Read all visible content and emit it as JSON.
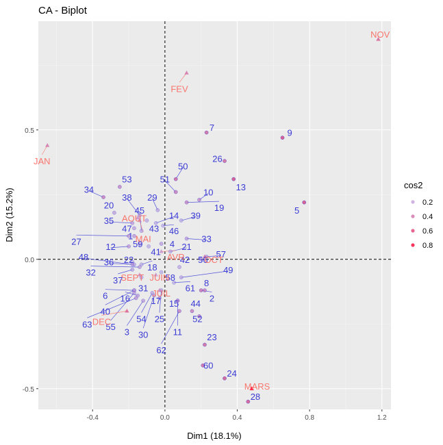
{
  "chart_data": {
    "type": "scatter",
    "title": "CA - Biplot",
    "xlabel": "Dim1 (18.1%)",
    "ylabel": "Dim2 (15.2%)",
    "xlim": [
      -0.7,
      1.25
    ],
    "ylim": [
      -0.58,
      0.92
    ],
    "x_ticks": [
      -0.4,
      0.0,
      0.4,
      0.8,
      1.2
    ],
    "x_tick_labels": [
      "-0.4",
      "0.0",
      "0.4",
      "0.8",
      "1.2"
    ],
    "y_ticks": [
      -0.5,
      0.0,
      0.5
    ],
    "y_tick_labels": [
      "-0.5",
      "0.0",
      "0.5"
    ],
    "grid": true,
    "reference_lines": {
      "x": 0,
      "y": 0,
      "style": "dashed"
    },
    "legend": {
      "title": "cos2",
      "position": "right",
      "entries": [
        "0.2",
        "0.4",
        "0.6",
        "0.8"
      ],
      "values": [
        0.2,
        0.4,
        0.6,
        0.8
      ]
    },
    "colors": {
      "rows": "#3b3bd6",
      "columns": "#f8766d"
    },
    "series": [
      {
        "name": "rows",
        "marker": "circle",
        "points": [
          {
            "label": "1",
            "x": -0.17,
            "y": 0.09,
            "lx": -0.19,
            "ly": 0.09,
            "cos2": 0.35
          },
          {
            "label": "2",
            "x": 0.2,
            "y": -0.12,
            "lx": 0.26,
            "ly": -0.15,
            "cos2": 0.6
          },
          {
            "label": "3",
            "x": -0.12,
            "y": -0.16,
            "lx": -0.21,
            "ly": -0.28,
            "cos2": 0.3
          },
          {
            "label": "4",
            "x": -0.02,
            "y": 0.06,
            "lx": 0.04,
            "ly": 0.06,
            "cos2": 0.3
          },
          {
            "label": "5",
            "x": 0.77,
            "y": 0.22,
            "lx": 0.73,
            "ly": 0.19,
            "cos2": 0.85
          },
          {
            "label": "6",
            "x": -0.17,
            "y": -0.12,
            "lx": -0.33,
            "ly": -0.14,
            "cos2": 0.3
          },
          {
            "label": "7",
            "x": 0.23,
            "y": 0.49,
            "lx": 0.26,
            "ly": 0.51,
            "cos2": 0.7
          },
          {
            "label": "8",
            "x": 0.22,
            "y": -0.12,
            "lx": 0.23,
            "ly": -0.09,
            "cos2": 0.55
          },
          {
            "label": "9",
            "x": 0.65,
            "y": 0.47,
            "lx": 0.69,
            "ly": 0.49,
            "cos2": 0.85
          },
          {
            "label": "10",
            "x": 0.19,
            "y": 0.23,
            "lx": 0.24,
            "ly": 0.26,
            "cos2": 0.45
          },
          {
            "label": "11",
            "x": 0.07,
            "y": -0.16,
            "lx": 0.07,
            "ly": -0.28,
            "cos2": 0.55
          },
          {
            "label": "12",
            "x": -0.2,
            "y": 0.05,
            "lx": -0.3,
            "ly": 0.05,
            "cos2": 0.35
          },
          {
            "label": "13",
            "x": 0.38,
            "y": 0.31,
            "lx": 0.42,
            "ly": 0.28,
            "cos2": 0.85
          },
          {
            "label": "14",
            "x": -0.05,
            "y": 0.14,
            "lx": 0.05,
            "ly": 0.17,
            "cos2": 0.2
          },
          {
            "label": "15",
            "x": 0.07,
            "y": -0.16,
            "lx": 0.05,
            "ly": -0.17,
            "cos2": 0.3
          },
          {
            "label": "16",
            "x": -0.15,
            "y": -0.14,
            "lx": -0.22,
            "ly": -0.15,
            "cos2": 0.3
          },
          {
            "label": "17",
            "x": -0.03,
            "y": -0.15,
            "lx": -0.05,
            "ly": -0.16,
            "cos2": 0.3
          },
          {
            "label": "18",
            "x": -0.13,
            "y": -0.02,
            "lx": -0.07,
            "ly": -0.03,
            "cos2": 0.2
          },
          {
            "label": "19",
            "x": 0.12,
            "y": 0.22,
            "lx": 0.3,
            "ly": 0.2,
            "cos2": 0.5
          },
          {
            "label": "20",
            "x": -0.28,
            "y": 0.18,
            "lx": -0.31,
            "ly": 0.21,
            "cos2": 0.3
          },
          {
            "label": "21",
            "x": 0.03,
            "y": 0.03,
            "lx": 0.12,
            "ly": 0.05,
            "cos2": 0.2
          },
          {
            "label": "22",
            "x": -0.18,
            "y": -0.01,
            "lx": -0.2,
            "ly": 0,
            "cos2": 0.2
          },
          {
            "label": "23",
            "x": 0.22,
            "y": -0.33,
            "lx": 0.26,
            "ly": -0.3,
            "cos2": 0.7
          },
          {
            "label": "24",
            "x": 0.33,
            "y": -0.46,
            "lx": 0.37,
            "ly": -0.44,
            "cos2": 0.8
          },
          {
            "label": "25",
            "x": -0.02,
            "y": -0.12,
            "lx": -0.03,
            "ly": -0.23,
            "cos2": 0.3
          },
          {
            "label": "26",
            "x": 0.33,
            "y": 0.38,
            "lx": 0.29,
            "ly": 0.39,
            "cos2": 0.7
          },
          {
            "label": "27",
            "x": -0.2,
            "y": 0.09,
            "lx": -0.49,
            "ly": 0.07,
            "cos2": 0.35
          },
          {
            "label": "28",
            "x": 0.46,
            "y": -0.55,
            "lx": 0.5,
            "ly": -0.53,
            "cos2": 0.8
          },
          {
            "label": "29",
            "x": -0.04,
            "y": 0.19,
            "lx": -0.07,
            "ly": 0.24,
            "cos2": 0.25
          },
          {
            "label": "30",
            "x": -0.06,
            "y": -0.14,
            "lx": -0.12,
            "ly": -0.29,
            "cos2": 0.25
          },
          {
            "label": "31",
            "x": -0.13,
            "y": -0.07,
            "lx": -0.12,
            "ly": -0.11,
            "cos2": 0.25
          },
          {
            "label": "32",
            "x": -0.14,
            "y": -0.03,
            "lx": -0.41,
            "ly": -0.05,
            "cos2": 0.3
          },
          {
            "label": "33",
            "x": 0.12,
            "y": 0.08,
            "lx": 0.23,
            "ly": 0.08,
            "cos2": 0.3
          },
          {
            "label": "34",
            "x": -0.34,
            "y": 0.24,
            "lx": -0.42,
            "ly": 0.27,
            "cos2": 0.55
          },
          {
            "label": "35",
            "x": -0.18,
            "y": 0.14,
            "lx": -0.31,
            "ly": 0.15,
            "cos2": 0.3
          },
          {
            "label": "36",
            "x": -0.17,
            "y": -0.02,
            "lx": -0.31,
            "ly": -0.01,
            "cos2": 0.25
          },
          {
            "label": "37",
            "x": -0.18,
            "y": -0.04,
            "lx": -0.26,
            "ly": -0.08,
            "cos2": 0.25
          },
          {
            "label": "38",
            "x": -0.14,
            "y": 0.17,
            "lx": -0.21,
            "ly": 0.24,
            "cos2": 0.3
          },
          {
            "label": "39",
            "x": 0.09,
            "y": 0.15,
            "lx": 0.17,
            "ly": 0.17,
            "cos2": 0.2
          },
          {
            "label": "40",
            "x": -0.17,
            "y": -0.12,
            "lx": -0.33,
            "ly": -0.2,
            "cos2": 0.3
          },
          {
            "label": "41",
            "x": -0.09,
            "y": 0.05,
            "lx": -0.05,
            "ly": 0.03,
            "cos2": 0.2
          },
          {
            "label": "42",
            "x": 0.08,
            "y": -0.03,
            "lx": 0.11,
            "ly": 0,
            "cos2": 0.25
          },
          {
            "label": "43",
            "x": -0.1,
            "y": 0.15,
            "lx": -0.06,
            "ly": 0.12,
            "cos2": 0.25
          },
          {
            "label": "44",
            "x": 0.15,
            "y": -0.2,
            "lx": 0.17,
            "ly": -0.17,
            "cos2": 0.55
          },
          {
            "label": "45",
            "x": -0.13,
            "y": 0.11,
            "lx": -0.14,
            "ly": 0.19,
            "cos2": 0.25
          },
          {
            "label": "46",
            "x": -0.01,
            "y": 0.13,
            "lx": 0.05,
            "ly": 0.11,
            "cos2": 0.2
          },
          {
            "label": "47",
            "x": -0.17,
            "y": 0.12,
            "lx": -0.21,
            "ly": 0.12,
            "cos2": 0.3
          },
          {
            "label": "48",
            "x": -0.18,
            "y": -0.02,
            "lx": -0.45,
            "ly": 0.01,
            "cos2": 0.3
          },
          {
            "label": "49",
            "x": 0.09,
            "y": -0.07,
            "lx": 0.35,
            "ly": -0.04,
            "cos2": 0.25
          },
          {
            "label": "50",
            "x": 0.06,
            "y": 0.31,
            "lx": 0.1,
            "ly": 0.36,
            "cos2": 0.7
          },
          {
            "label": "51",
            "x": 0.06,
            "y": 0.26,
            "lx": 0,
            "ly": 0.31,
            "cos2": 0.55
          },
          {
            "label": "52",
            "x": 0.19,
            "y": -0.22,
            "lx": 0.18,
            "ly": -0.23,
            "cos2": 0.55
          },
          {
            "label": "53",
            "x": -0.25,
            "y": 0.28,
            "lx": -0.21,
            "ly": 0.31,
            "cos2": 0.5
          },
          {
            "label": "54",
            "x": -0.07,
            "y": -0.13,
            "lx": -0.13,
            "ly": -0.23,
            "cos2": 0.25
          },
          {
            "label": "55",
            "x": -0.17,
            "y": -0.13,
            "lx": -0.3,
            "ly": -0.26,
            "cos2": 0.3
          },
          {
            "label": "56",
            "x": 0.2,
            "y": 0.0,
            "lx": 0.21,
            "ly": 0,
            "cos2": 0.3
          },
          {
            "label": "57",
            "x": 0.23,
            "y": 0.01,
            "lx": 0.31,
            "ly": 0.02,
            "cos2": 0.3
          },
          {
            "label": "58",
            "x": -0.02,
            "y": -0.05,
            "lx": 0.03,
            "ly": -0.07,
            "cos2": 0.2
          },
          {
            "label": "59",
            "x": -0.14,
            "y": 0.06,
            "lx": -0.15,
            "ly": 0.06,
            "cos2": 0.25
          },
          {
            "label": "60",
            "x": 0.21,
            "y": -0.41,
            "lx": 0.24,
            "ly": -0.41,
            "cos2": 0.7
          },
          {
            "label": "61",
            "x": 0.05,
            "y": -0.09,
            "lx": 0.14,
            "ly": -0.11,
            "cos2": 0.2
          },
          {
            "label": "62",
            "x": 0.08,
            "y": -0.2,
            "lx": -0.02,
            "ly": -0.35,
            "cos2": 0.5
          },
          {
            "label": "63",
            "x": -0.16,
            "y": -0.15,
            "lx": -0.43,
            "ly": -0.25,
            "cos2": 0.35
          }
        ]
      },
      {
        "name": "columns",
        "marker": "triangle",
        "points": [
          {
            "label": "NOV",
            "x": 1.18,
            "y": 0.85,
            "lx": 1.19,
            "ly": 0.87,
            "cos2": 0.5
          },
          {
            "label": "FEV",
            "x": 0.12,
            "y": 0.72,
            "lx": 0.08,
            "ly": 0.66,
            "cos2": 0.4
          },
          {
            "label": "JAN",
            "x": -0.65,
            "y": 0.44,
            "lx": -0.68,
            "ly": 0.38,
            "cos2": 0.4
          },
          {
            "label": "AOUT",
            "x": -0.15,
            "y": 0.16,
            "lx": -0.17,
            "ly": 0.16,
            "cos2": 0.3
          },
          {
            "label": "MAI",
            "x": -0.14,
            "y": 0.15,
            "lx": -0.12,
            "ly": 0.08,
            "cos2": 0.3
          },
          {
            "label": "AVR",
            "x": -0.02,
            "y": 0.03,
            "lx": 0.06,
            "ly": 0.01,
            "cos2": 0.25
          },
          {
            "label": "OCT",
            "x": 0.22,
            "y": 0.01,
            "lx": 0.27,
            "ly": 0.0,
            "cos2": 0.4
          },
          {
            "label": "SEPT",
            "x": -0.14,
            "y": -0.06,
            "lx": -0.18,
            "ly": -0.07,
            "cos2": 0.3
          },
          {
            "label": "JUIN",
            "x": -0.05,
            "y": -0.06,
            "lx": -0.03,
            "ly": -0.07,
            "cos2": 0.25
          },
          {
            "label": "JUIL",
            "x": -0.03,
            "y": -0.12,
            "lx": -0.02,
            "ly": -0.13,
            "cos2": 0.3
          },
          {
            "label": "DEC",
            "x": -0.21,
            "y": -0.2,
            "lx": -0.35,
            "ly": -0.24,
            "cos2": 0.5
          },
          {
            "label": "MARS",
            "x": 0.48,
            "y": -0.5,
            "lx": 0.51,
            "ly": -0.49,
            "cos2": 0.9
          }
        ]
      }
    ]
  }
}
